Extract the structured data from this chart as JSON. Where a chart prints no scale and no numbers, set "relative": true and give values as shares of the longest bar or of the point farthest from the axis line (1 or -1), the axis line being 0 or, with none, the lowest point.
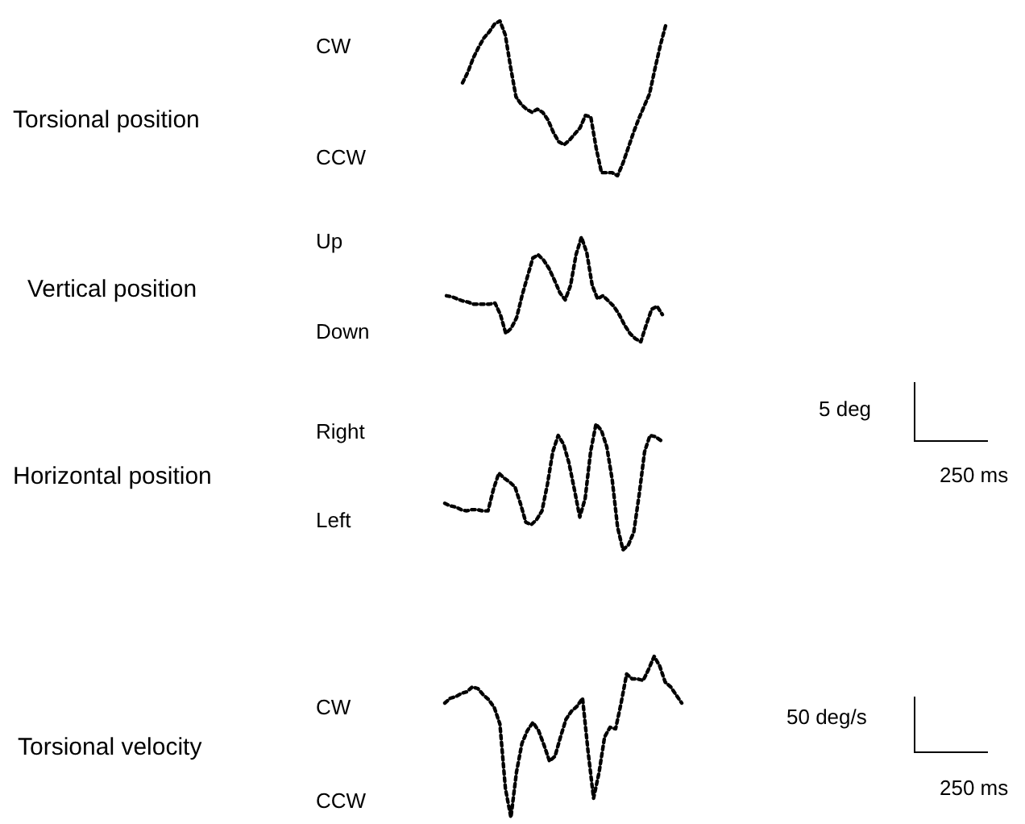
{
  "chart_data": [
    {
      "type": "line",
      "ylabel": "Torsional position",
      "annotations": [
        "CW",
        "CCW"
      ],
      "relative": true,
      "marker": "none",
      "line_style": "dotted",
      "color": "#000000",
      "categories": [
        null,
        null,
        null,
        null,
        null,
        null,
        null,
        null,
        null,
        null,
        null,
        null,
        null,
        null,
        null,
        null,
        null,
        null,
        null,
        null,
        null,
        null,
        null,
        null,
        null,
        null,
        null,
        null,
        null,
        null,
        null,
        null,
        null,
        null,
        null,
        null,
        null,
        null,
        null
      ],
      "values": [
        0.6,
        0.67,
        0.76,
        0.83,
        0.89,
        0.93,
        0.98,
        1,
        0.91,
        0.7,
        0.51,
        0.46,
        0.43,
        0.41,
        0.43,
        0.41,
        0.36,
        0.28,
        0.22,
        0.2,
        0.23,
        0.27,
        0.31,
        0.39,
        0.38,
        0.18,
        0.02,
        0.02,
        0.02,
        0,
        0.08,
        0.18,
        0.28,
        0.37,
        0.45,
        0.53,
        0.69,
        0.84,
        0.97
      ]
    },
    {
      "type": "line",
      "ylabel": "Vertical position",
      "annotations": [
        "Up",
        "Down"
      ],
      "relative": true,
      "marker": "none",
      "line_style": "dotted",
      "color": "#000000",
      "categories": [
        null,
        null,
        null,
        null,
        null,
        null,
        null,
        null,
        null,
        null,
        null,
        null,
        null,
        null,
        null,
        null,
        null,
        null,
        null,
        null,
        null,
        null,
        null,
        null,
        null,
        null,
        null,
        null,
        null,
        null,
        null,
        null,
        null,
        null,
        null,
        null,
        null,
        null,
        null,
        null,
        null
      ],
      "values": [
        0.44,
        0.43,
        0.41,
        0.39,
        0.38,
        0.36,
        0.36,
        0.36,
        0.36,
        0.37,
        0.26,
        0.08,
        0.13,
        0.23,
        0.44,
        0.62,
        0.8,
        0.83,
        0.78,
        0.7,
        0.59,
        0.47,
        0.4,
        0.54,
        0.83,
        1,
        0.85,
        0.54,
        0.41,
        0.44,
        0.39,
        0.34,
        0.26,
        0.16,
        0.08,
        0.03,
        0,
        0.16,
        0.31,
        0.34,
        0.26
      ]
    },
    {
      "type": "line",
      "ylabel": "Horizontal position",
      "annotations": [
        "Right",
        "Left",
        "5 deg",
        "250 ms"
      ],
      "relative": true,
      "marker": "none",
      "line_style": "dotted",
      "color": "#000000",
      "categories": [
        null,
        null,
        null,
        null,
        null,
        null,
        null,
        null,
        null,
        null,
        null,
        null,
        null,
        null,
        null,
        null,
        null,
        null,
        null,
        null,
        null,
        null,
        null,
        null,
        null,
        null,
        null,
        null,
        null,
        null,
        null,
        null,
        null,
        null,
        null,
        null,
        null,
        null,
        null,
        null,
        null
      ],
      "values": [
        0.37,
        0.35,
        0.34,
        0.32,
        0.31,
        0.32,
        0.32,
        0.31,
        0.31,
        0.48,
        0.61,
        0.57,
        0.54,
        0.5,
        0.37,
        0.22,
        0.2,
        0.24,
        0.31,
        0.52,
        0.78,
        0.91,
        0.84,
        0.69,
        0.48,
        0.26,
        0.41,
        0.78,
        1,
        0.95,
        0.82,
        0.56,
        0.18,
        0,
        0.04,
        0.14,
        0.44,
        0.78,
        0.91,
        0.9,
        0.87
      ]
    },
    {
      "type": "line",
      "ylabel": "Torsional velocity",
      "annotations": [
        "CW",
        "CCW",
        "50 deg/s",
        "250 ms"
      ],
      "relative": true,
      "marker": "none",
      "line_style": "dotted",
      "color": "#000000",
      "categories": [
        null,
        null,
        null,
        null,
        null,
        null,
        null,
        null,
        null,
        null,
        null,
        null,
        null,
        null,
        null,
        null,
        null,
        null,
        null,
        null,
        null,
        null,
        null,
        null,
        null,
        null,
        null,
        null,
        null,
        null,
        null,
        null,
        null,
        null,
        null,
        null,
        null,
        null,
        null,
        null,
        null,
        null,
        null,
        null
      ],
      "values": [
        0.71,
        0.74,
        0.75,
        0.77,
        0.78,
        0.81,
        0.8,
        0.76,
        0.73,
        0.68,
        0.58,
        0.18,
        0,
        0.28,
        0.46,
        0.54,
        0.59,
        0.54,
        0.45,
        0.35,
        0.38,
        0.5,
        0.61,
        0.66,
        0.69,
        0.74,
        0.41,
        0.12,
        0.28,
        0.5,
        0.56,
        0.55,
        0.71,
        0.89,
        0.86,
        0.86,
        0.85,
        0.92,
        1,
        0.94,
        0.84,
        0.81,
        0.76,
        0.71
      ]
    }
  ]
}
